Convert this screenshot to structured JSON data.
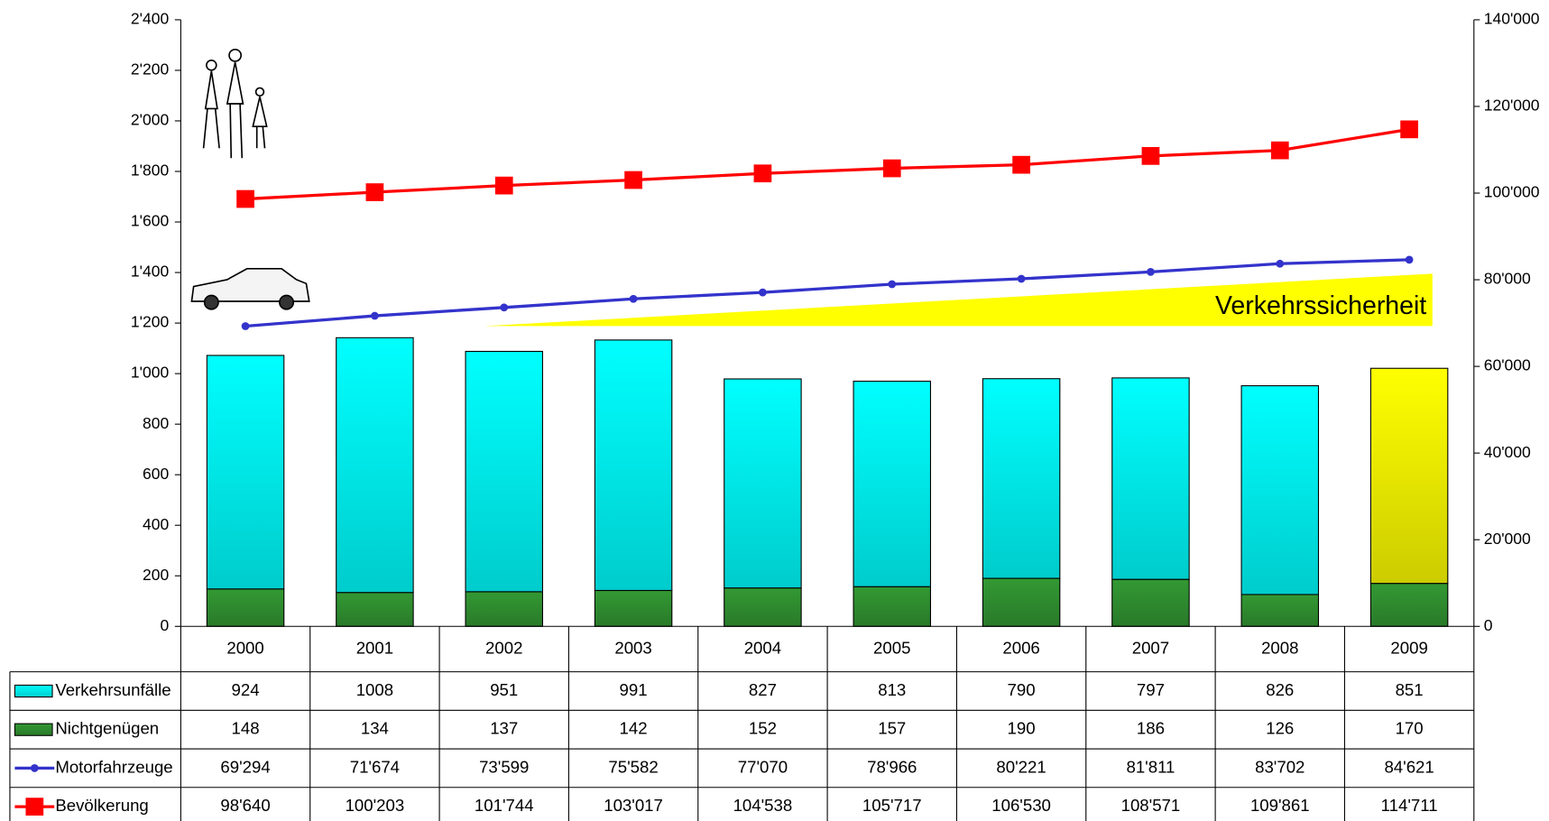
{
  "chart_data": {
    "type": "bar",
    "categories": [
      "2000",
      "2001",
      "2002",
      "2003",
      "2004",
      "2005",
      "2006",
      "2007",
      "2008",
      "2009"
    ],
    "series": [
      {
        "name": "Verkehrsunfälle",
        "type": "bar",
        "color": "#00ffff",
        "colors": [
          "#00ffff",
          "#00ffff",
          "#00ffff",
          "#00ffff",
          "#00ffff",
          "#00ffff",
          "#00ffff",
          "#00ffff",
          "#00ffff",
          "#ffff00"
        ],
        "values": [
          924,
          1008,
          951,
          991,
          827,
          813,
          790,
          797,
          826,
          851
        ]
      },
      {
        "name": "Nichtgenügen",
        "type": "bar",
        "color": "#339933",
        "values": [
          148,
          134,
          137,
          142,
          152,
          157,
          190,
          186,
          126,
          170
        ]
      },
      {
        "name": "Motorfahrzeuge",
        "type": "line",
        "axis": "y2",
        "color": "#3333cc",
        "marker": "circle",
        "values": [
          69294,
          71674,
          73599,
          75582,
          77070,
          78966,
          80221,
          81811,
          83702,
          84621
        ],
        "value_labels": [
          "69'294",
          "71'674",
          "73'599",
          "75'582",
          "77'070",
          "78'966",
          "80'221",
          "81'811",
          "83'702",
          "84'621"
        ]
      },
      {
        "name": "Bevölkerung",
        "type": "line",
        "axis": "y2",
        "color": "#ff0000",
        "marker": "square",
        "values": [
          98640,
          100203,
          101744,
          103017,
          104538,
          105717,
          106530,
          108571,
          109861,
          114711
        ],
        "value_labels": [
          "98'640",
          "100'203",
          "101'744",
          "103'017",
          "104'538",
          "105'717",
          "106'530",
          "108'571",
          "109'861",
          "114'711"
        ]
      }
    ],
    "ylim": [
      0,
      2400
    ],
    "yticks": [
      0,
      200,
      400,
      600,
      800,
      {
        "value": 1000,
        "label": "1'000"
      },
      {
        "value": 1200,
        "label": "1'200"
      },
      {
        "value": 1400,
        "label": "1'400"
      },
      {
        "value": 1600,
        "label": "1'600"
      },
      {
        "value": 1800,
        "label": "1'800"
      },
      {
        "value": 2000,
        "label": "2'000"
      },
      {
        "value": 2200,
        "label": "2'200"
      },
      {
        "value": 2400,
        "label": "2'400"
      }
    ],
    "y2lim": [
      0,
      140000
    ],
    "y2ticks": [
      0,
      {
        "value": 20000,
        "label": "20'000"
      },
      {
        "value": 40000,
        "label": "40'000"
      },
      {
        "value": 60000,
        "label": "60'000"
      },
      {
        "value": 80000,
        "label": "80'000"
      },
      {
        "value": 100000,
        "label": "100'000"
      },
      {
        "value": 120000,
        "label": "120'000"
      },
      {
        "value": 140000,
        "label": "140'000"
      }
    ],
    "annotation": "Verkehrssicherheit",
    "grid": false
  }
}
